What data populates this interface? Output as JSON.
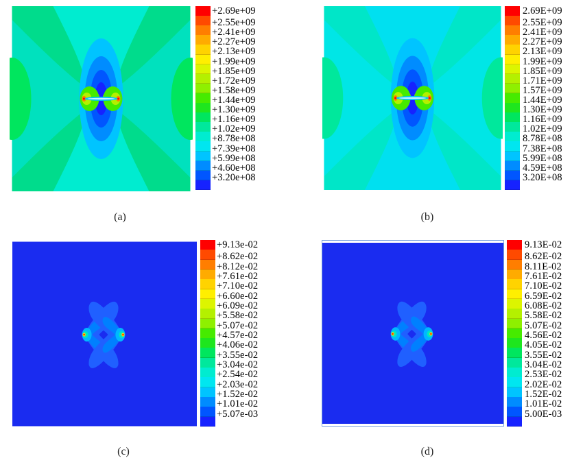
{
  "colors": [
    "#ff0000",
    "#ff4a00",
    "#ff7e00",
    "#ffab00",
    "#ffd300",
    "#ffef00",
    "#dcf500",
    "#b4f000",
    "#8ef000",
    "#46eb00",
    "#1ee61e",
    "#00e65e",
    "#00e89c",
    "#00ecd0",
    "#00e6f0",
    "#00c4ff",
    "#008cff",
    "#0056ff",
    "#1622ff"
  ],
  "panels": [
    {
      "id": "a",
      "caption": "(a)",
      "kind": "stress",
      "legend_labels": [
        "+2.69e+09",
        "+2.55e+09",
        "+2.41e+09",
        "+2.27e+09",
        "+2.13e+09",
        "+1.99e+09",
        "+1.85e+09",
        "+1.72e+09",
        "+1.58e+09",
        "+1.44e+09",
        "+1.30e+09",
        "+1.16e+09",
        "+1.02e+09",
        "+8.78e+08",
        "+7.39e+08",
        "+5.99e+08",
        "+4.60e+08",
        "+3.20e+08"
      ]
    },
    {
      "id": "b",
      "caption": "(b)",
      "kind": "stress",
      "legend_labels": [
        "2.69E+09",
        "2.55E+09",
        "2.41E+09",
        "2.27E+09",
        "2.13E+09",
        "1.99E+09",
        "1.85E+09",
        "1.71E+09",
        "1.57E+09",
        "1.44E+09",
        "1.30E+09",
        "1.16E+09",
        "1.02E+09",
        "8.78E+08",
        "7.38E+08",
        "5.99E+08",
        "4.59E+08",
        "3.20E+08"
      ]
    },
    {
      "id": "c",
      "caption": "(c)",
      "kind": "damage",
      "legend_labels": [
        "+9.13e-02",
        "+8.62e-02",
        "+8.12e-02",
        "+7.61e-02",
        "+7.10e-02",
        "+6.60e-02",
        "+6.09e-02",
        "+5.58e-02",
        "+5.07e-02",
        "+4.57e-02",
        "+4.06e-02",
        "+3.55e-02",
        "+3.04e-02",
        "+2.54e-02",
        "+2.03e-02",
        "+1.52e-02",
        "+1.01e-02",
        "+5.07e-03"
      ]
    },
    {
      "id": "d",
      "caption": "(d)",
      "kind": "damage",
      "legend_labels": [
        "9.13E-02",
        "8.62E-02",
        "8.11E-02",
        "7.61E-02",
        "7.10E-02",
        "6.59E-02",
        "6.08E-02",
        "5.58E-02",
        "5.07E-02",
        "4.56E-02",
        "4.05E-02",
        "3.55E-02",
        "3.04E-02",
        "2.53E-02",
        "2.02E-02",
        "1.52E-02",
        "1.01E-02",
        "5.00E-03"
      ]
    }
  ]
}
